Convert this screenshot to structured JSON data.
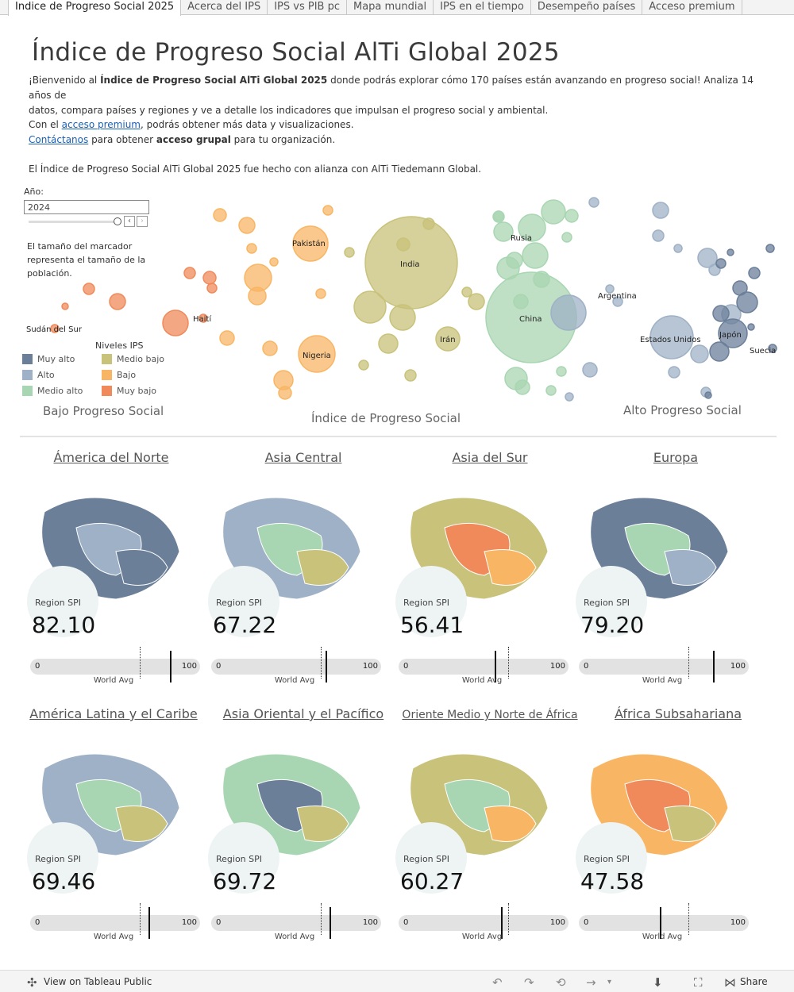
{
  "tabs": [
    "Indice de Progreso Social 2025",
    "Acerca del IPS",
    "IPS vs PIB pc",
    "Mapa mundial",
    "IPS en el tiempo",
    "Desempeño países",
    "Acceso premium"
  ],
  "title": "Índice de Progreso Social AlTi Global  2025",
  "intro": {
    "p1_a": "¡Bienvenido al ",
    "p1_b": "Índice de Progreso Social AlTi Global 2025",
    "p1_c": " donde podrás explorar cómo 170 países están avanzando en progreso social! Analiza 14 años de",
    "p1_d": "datos, compara países y regiones y ve a detalle los indicadores que impulsan el progreso social y ambiental.",
    "p2_a": "Con el ",
    "p2_link": "acceso premium",
    "p2_b": ", podrás obtener más data y visualizaciones.",
    "p3_link": "Contáctanos",
    "p3_a": " para obtener ",
    "p3_b": "acceso grupal",
    "p3_c": " para tu organización.",
    "p4": "El Índice de Progreso Social AlTi Global 2025 fue hecho con alianza con AlTi Tiedemann Global."
  },
  "year_filter": {
    "label": "Año:",
    "value": "2024"
  },
  "size_note": "El tamaño del marcador representa el tamaño de la población.",
  "legend": {
    "title": "Niveles IPS",
    "items": [
      {
        "label": "Muy alto",
        "color": "#6b7f99"
      },
      {
        "label": "Alto",
        "color": "#9fb1c6"
      },
      {
        "label": "Medio alto",
        "color": "#a9d6b2"
      },
      {
        "label": "Medio bajo",
        "color": "#c8c27a"
      },
      {
        "label": "Bajo",
        "color": "#f8b665"
      },
      {
        "label": "Muy bajo",
        "color": "#f08a5a"
      }
    ]
  },
  "axis": {
    "left": "Bajo Progreso Social",
    "center": "Índice de Progreso Social",
    "right": "Alto Progreso Social"
  },
  "bubble_labels": [
    "Sudán del Sur",
    "Haití",
    "Pakistán",
    "Nigeria",
    "India",
    "Irán",
    "Rusia",
    "China",
    "Argentina",
    "Estados Unidos",
    "Japón",
    "Suecia"
  ],
  "regions": [
    {
      "name": "Ámerica del Norte",
      "spi_label": "Region SPI",
      "spi": "82.10",
      "zero": "0",
      "hundred": "100",
      "world_avg": "World Avg",
      "spi_value": 82.1
    },
    {
      "name": "Asia Central",
      "spi_label": "Region SPI",
      "spi": "67.22",
      "zero": "0",
      "hundred": "100",
      "world_avg": "World Avg",
      "spi_value": 67.22
    },
    {
      "name": "Asia del Sur",
      "spi_label": "Region SPI",
      "spi": "56.41",
      "zero": "0",
      "hundred": "100",
      "world_avg": "World Avg",
      "spi_value": 56.41
    },
    {
      "name": "Europa",
      "spi_label": "Region SPI",
      "spi": "79.20",
      "zero": "0",
      "hundred": "100",
      "world_avg": "World Avg",
      "spi_value": 79.2
    },
    {
      "name": "América Latina y el Caribe",
      "spi_label": "Region SPI",
      "spi": "69.46",
      "zero": "0",
      "hundred": "100",
      "world_avg": "World Avg",
      "spi_value": 69.46
    },
    {
      "name": "Asia Oriental y el Pacífico",
      "spi_label": "Region SPI",
      "spi": "69.72",
      "zero": "0",
      "hundred": "100",
      "world_avg": "World Avg",
      "spi_value": 69.72
    },
    {
      "name": "Oriente Medio y Norte de África",
      "spi_label": "Region SPI",
      "spi": "60.27",
      "zero": "0",
      "hundred": "100",
      "world_avg": "World Avg",
      "spi_value": 60.27
    },
    {
      "name": "África Subsahariana",
      "spi_label": "Region SPI",
      "spi": "47.58",
      "zero": "0",
      "hundred": "100",
      "world_avg": "World Avg",
      "spi_value": 47.58
    }
  ],
  "footer": {
    "view": "View on Tableau Public",
    "share": "Share"
  }
}
